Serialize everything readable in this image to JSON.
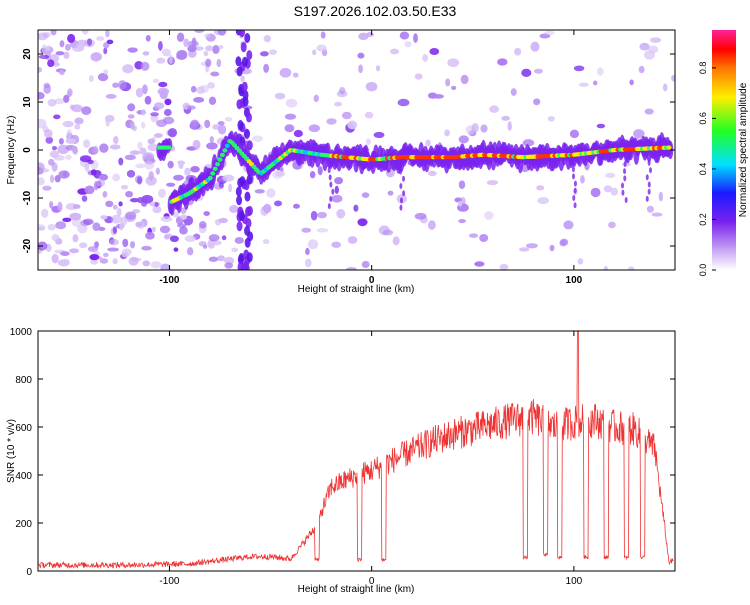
{
  "title": "S197.2026.102.03.50.E33",
  "colors": {
    "trace": "#ee3333",
    "spectrogram_base": "#7a22ee",
    "spectrogram_light": "#c9a8f5",
    "axis": "#000000"
  },
  "chart_data": [
    {
      "type": "heatmap",
      "title": "",
      "xlabel": "Height of straight line (km)",
      "ylabel": "Frequency (Hz)",
      "xlim": [
        -165,
        150
      ],
      "ylim": [
        -25,
        25
      ],
      "xticks": [
        -100,
        0,
        100
      ],
      "yticks": [
        -20,
        -10,
        0,
        10,
        20
      ],
      "colorbar": {
        "label": "Normalized spectral amplitude",
        "range": [
          0,
          0.95
        ],
        "ticks": [
          0,
          0.2,
          0.4,
          0.6,
          0.8
        ],
        "tick_labels": [
          "0.0",
          "0.2",
          "0.4",
          "0.6",
          "0.8"
        ],
        "colormap": "rainbow (white-violet-blue-cyan-green-yellow-red-pink)"
      },
      "ridge": [
        {
          "x": -100,
          "y": -11
        },
        {
          "x": -90,
          "y": -9
        },
        {
          "x": -80,
          "y": -6
        },
        {
          "x": -70,
          "y": 2
        },
        {
          "x": -55,
          "y": -5
        },
        {
          "x": -40,
          "y": 0
        },
        {
          "x": -25,
          "y": -1
        },
        {
          "x": 0,
          "y": -2
        },
        {
          "x": 15,
          "y": -1.5
        },
        {
          "x": 40,
          "y": -1.5
        },
        {
          "x": 55,
          "y": -1
        },
        {
          "x": 75,
          "y": -1.5
        },
        {
          "x": 100,
          "y": -1
        },
        {
          "x": 120,
          "y": 0
        },
        {
          "x": 147,
          "y": 0.5
        }
      ]
    },
    {
      "type": "line",
      "title": "",
      "xlabel": "Height of straight line (km)",
      "ylabel": "SNR (10 * v/v)",
      "xlim": [
        -165,
        150
      ],
      "ylim": [
        0,
        1000
      ],
      "xticks": [
        -100,
        0,
        100
      ],
      "yticks": [
        0,
        200,
        400,
        600,
        800,
        1000
      ],
      "series": [
        {
          "name": "SNR",
          "x": [
            -165,
            -120,
            -90,
            -75,
            -60,
            -50,
            -40,
            -28,
            -20,
            -10,
            0,
            10,
            20,
            30,
            40,
            50,
            60,
            70,
            80,
            90,
            100,
            110,
            120,
            130,
            140,
            147
          ],
          "values": [
            25,
            25,
            30,
            45,
            60,
            60,
            50,
            180,
            350,
            390,
            420,
            460,
            500,
            540,
            570,
            590,
            610,
            630,
            640,
            600,
            620,
            630,
            600,
            590,
            510,
            40
          ]
        }
      ],
      "dropouts": [
        {
          "x": -27,
          "value": 40
        },
        {
          "x": -6,
          "value": 40
        },
        {
          "x": 6,
          "value": 40
        },
        {
          "x": 76,
          "value": 50
        },
        {
          "x": 86,
          "value": 60
        },
        {
          "x": 93,
          "value": 50
        },
        {
          "x": 106,
          "value": 50
        },
        {
          "x": 116,
          "value": 50
        },
        {
          "x": 126,
          "value": 50
        },
        {
          "x": 134,
          "value": 50
        }
      ],
      "peak": {
        "x": 102,
        "value": 1000
      }
    }
  ]
}
